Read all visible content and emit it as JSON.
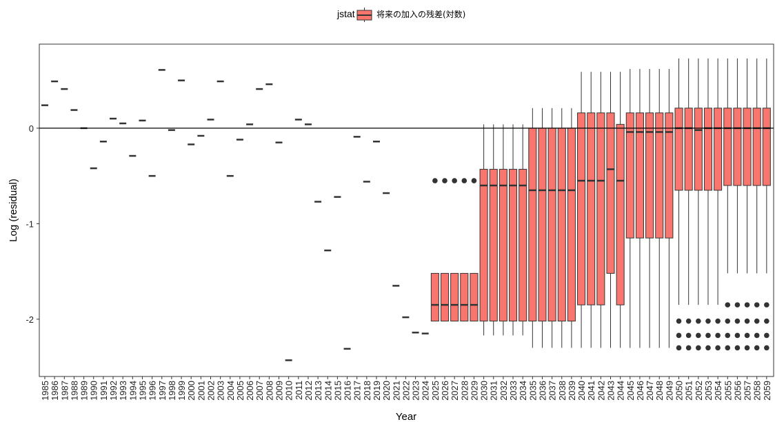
{
  "chart_data": {
    "type": "boxplot",
    "xlabel": "Year",
    "ylabel": "Log (residual)",
    "legend": {
      "title": "jstat",
      "label": "将来の加入の残差(対数)",
      "position": "top"
    },
    "colors": {
      "box_fill": "#f8766d",
      "box_stroke": "#333333",
      "point": "#333333",
      "reference_line": "#000000"
    },
    "reference_line_y": 0,
    "ylim": [
      -2.6,
      0.88
    ],
    "yticks": [
      0,
      -1,
      -2
    ],
    "ytick_labels": [
      "0",
      "-1",
      "-2"
    ],
    "years": [
      "1985",
      "1986",
      "1987",
      "1988",
      "1989",
      "1990",
      "1991",
      "1992",
      "1993",
      "1994",
      "1995",
      "1996",
      "1997",
      "1998",
      "1999",
      "2000",
      "2001",
      "2002",
      "2003",
      "2004",
      "2005",
      "2006",
      "2007",
      "2008",
      "2009",
      "2010",
      "2011",
      "2012",
      "2013",
      "2014",
      "2015",
      "2016",
      "2017",
      "2018",
      "2019",
      "2020",
      "2021",
      "2022",
      "2023",
      "2024",
      "2025",
      "2026",
      "2027",
      "2028",
      "2029",
      "2030",
      "2031",
      "2032",
      "2033",
      "2034",
      "2035",
      "2036",
      "2037",
      "2038",
      "2039",
      "2040",
      "2041",
      "2042",
      "2043",
      "2044",
      "2045",
      "2046",
      "2047",
      "2048",
      "2049",
      "2050",
      "2051",
      "2052",
      "2053",
      "2054",
      "2055",
      "2056",
      "2057",
      "2058",
      "2059"
    ],
    "historical_values": [
      0.24,
      0.49,
      0.41,
      0.19,
      0.0,
      -0.42,
      -0.14,
      0.1,
      0.05,
      -0.29,
      0.08,
      -0.5,
      0.61,
      -0.02,
      0.5,
      -0.17,
      -0.08,
      0.09,
      0.49,
      -0.5,
      -0.12,
      0.04,
      0.41,
      0.46,
      -0.15,
      -2.43,
      0.09,
      0.04,
      -0.77,
      -1.28,
      -0.72,
      -2.31,
      -0.09,
      -0.56,
      -0.14,
      -0.68,
      -1.65,
      -1.98,
      -2.14,
      -2.15
    ],
    "projection_boxes": [
      {
        "year": "2025",
        "q1": -2.02,
        "median": -1.85,
        "q3": -1.52,
        "low": -2.02,
        "high": -1.52,
        "outliers": [
          -0.55
        ]
      },
      {
        "year": "2026",
        "q1": -2.02,
        "median": -1.85,
        "q3": -1.52,
        "low": -2.02,
        "high": -1.52,
        "outliers": [
          -0.55
        ]
      },
      {
        "year": "2027",
        "q1": -2.02,
        "median": -1.85,
        "q3": -1.52,
        "low": -2.02,
        "high": -1.52,
        "outliers": [
          -0.55
        ]
      },
      {
        "year": "2028",
        "q1": -2.02,
        "median": -1.85,
        "q3": -1.52,
        "low": -2.02,
        "high": -1.52,
        "outliers": [
          -0.55
        ]
      },
      {
        "year": "2029",
        "q1": -2.02,
        "median": -1.85,
        "q3": -1.52,
        "low": -2.02,
        "high": -1.52,
        "outliers": [
          -0.55
        ]
      },
      {
        "year": "2030",
        "q1": -2.02,
        "median": -0.6,
        "q3": -0.43,
        "low": -2.17,
        "high": 0.04,
        "outliers": []
      },
      {
        "year": "2031",
        "q1": -2.02,
        "median": -0.6,
        "q3": -0.43,
        "low": -2.17,
        "high": 0.04,
        "outliers": []
      },
      {
        "year": "2032",
        "q1": -2.02,
        "median": -0.6,
        "q3": -0.43,
        "low": -2.17,
        "high": 0.04,
        "outliers": []
      },
      {
        "year": "2033",
        "q1": -2.02,
        "median": -0.6,
        "q3": -0.43,
        "low": -2.17,
        "high": 0.04,
        "outliers": []
      },
      {
        "year": "2034",
        "q1": -2.02,
        "median": -0.6,
        "q3": -0.43,
        "low": -2.17,
        "high": 0.04,
        "outliers": []
      },
      {
        "year": "2035",
        "q1": -2.02,
        "median": -0.65,
        "q3": 0.0,
        "low": -2.3,
        "high": 0.21,
        "outliers": []
      },
      {
        "year": "2036",
        "q1": -2.02,
        "median": -0.65,
        "q3": 0.0,
        "low": -2.3,
        "high": 0.21,
        "outliers": []
      },
      {
        "year": "2037",
        "q1": -2.02,
        "median": -0.65,
        "q3": 0.0,
        "low": -2.3,
        "high": 0.21,
        "outliers": []
      },
      {
        "year": "2038",
        "q1": -2.02,
        "median": -0.65,
        "q3": 0.0,
        "low": -2.3,
        "high": 0.21,
        "outliers": []
      },
      {
        "year": "2039",
        "q1": -2.02,
        "median": -0.65,
        "q3": 0.0,
        "low": -2.3,
        "high": 0.21,
        "outliers": []
      },
      {
        "year": "2040",
        "q1": -1.85,
        "median": -0.55,
        "q3": 0.16,
        "low": -2.3,
        "high": 0.59,
        "outliers": []
      },
      {
        "year": "2041",
        "q1": -1.85,
        "median": -0.55,
        "q3": 0.16,
        "low": -2.3,
        "high": 0.59,
        "outliers": []
      },
      {
        "year": "2042",
        "q1": -1.85,
        "median": -0.55,
        "q3": 0.16,
        "low": -2.3,
        "high": 0.59,
        "outliers": []
      },
      {
        "year": "2043",
        "q1": -1.52,
        "median": -0.43,
        "q3": 0.16,
        "low": -2.3,
        "high": 0.59,
        "outliers": []
      },
      {
        "year": "2044",
        "q1": -1.85,
        "median": -0.55,
        "q3": 0.04,
        "low": -2.3,
        "high": 0.59,
        "outliers": []
      },
      {
        "year": "2045",
        "q1": -1.15,
        "median": -0.04,
        "q3": 0.16,
        "low": -2.3,
        "high": 0.62,
        "outliers": []
      },
      {
        "year": "2046",
        "q1": -1.15,
        "median": -0.04,
        "q3": 0.16,
        "low": -2.3,
        "high": 0.62,
        "outliers": []
      },
      {
        "year": "2047",
        "q1": -1.15,
        "median": -0.04,
        "q3": 0.16,
        "low": -2.3,
        "high": 0.62,
        "outliers": []
      },
      {
        "year": "2048",
        "q1": -1.15,
        "median": -0.04,
        "q3": 0.16,
        "low": -2.3,
        "high": 0.62,
        "outliers": []
      },
      {
        "year": "2049",
        "q1": -1.15,
        "median": -0.04,
        "q3": 0.16,
        "low": -2.3,
        "high": 0.62,
        "outliers": []
      },
      {
        "year": "2050",
        "q1": -0.65,
        "median": 0.0,
        "q3": 0.21,
        "low": -1.85,
        "high": 0.73,
        "outliers": [
          -2.02,
          -2.17,
          -2.3
        ]
      },
      {
        "year": "2051",
        "q1": -0.65,
        "median": 0.0,
        "q3": 0.21,
        "low": -1.85,
        "high": 0.73,
        "outliers": [
          -2.02,
          -2.17,
          -2.3
        ]
      },
      {
        "year": "2052",
        "q1": -0.65,
        "median": -0.02,
        "q3": 0.21,
        "low": -1.85,
        "high": 0.73,
        "outliers": [
          -2.02,
          -2.17,
          -2.3
        ]
      },
      {
        "year": "2053",
        "q1": -0.65,
        "median": 0.0,
        "q3": 0.21,
        "low": -1.85,
        "high": 0.73,
        "outliers": [
          -2.02,
          -2.17,
          -2.3
        ]
      },
      {
        "year": "2054",
        "q1": -0.65,
        "median": 0.0,
        "q3": 0.21,
        "low": -1.85,
        "high": 0.73,
        "outliers": [
          -2.02,
          -2.17,
          -2.3
        ]
      },
      {
        "year": "2055",
        "q1": -0.6,
        "median": 0.0,
        "q3": 0.21,
        "low": -1.52,
        "high": 0.73,
        "outliers": [
          -1.85,
          -2.02,
          -2.17,
          -2.3
        ]
      },
      {
        "year": "2056",
        "q1": -0.6,
        "median": 0.0,
        "q3": 0.21,
        "low": -1.52,
        "high": 0.73,
        "outliers": [
          -1.85,
          -2.02,
          -2.17,
          -2.3
        ]
      },
      {
        "year": "2057",
        "q1": -0.6,
        "median": 0.0,
        "q3": 0.21,
        "low": -1.52,
        "high": 0.73,
        "outliers": [
          -1.85,
          -2.02,
          -2.17,
          -2.3
        ]
      },
      {
        "year": "2058",
        "q1": -0.6,
        "median": 0.0,
        "q3": 0.21,
        "low": -1.52,
        "high": 0.73,
        "outliers": [
          -1.85,
          -2.02,
          -2.17,
          -2.3
        ]
      },
      {
        "year": "2059",
        "q1": -0.6,
        "median": 0.0,
        "q3": 0.21,
        "low": -1.52,
        "high": 0.73,
        "outliers": [
          -1.85,
          -2.02,
          -2.17,
          -2.3
        ]
      }
    ]
  }
}
